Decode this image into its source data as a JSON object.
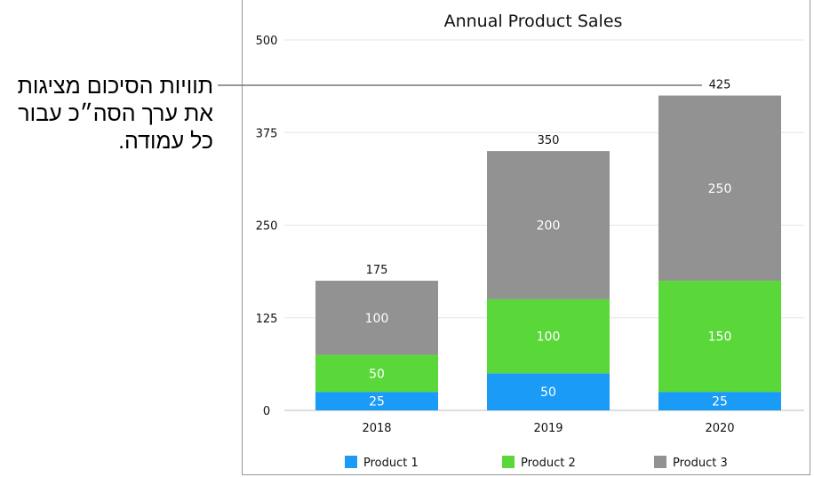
{
  "callout": {
    "text": "תוויות הסיכום מציגות את ערך הסה״כ עבור כל עמודה."
  },
  "chart_data": {
    "type": "bar",
    "stacked": true,
    "title": "Annual Product Sales",
    "categories": [
      "2018",
      "2019",
      "2020"
    ],
    "series": [
      {
        "name": "Product 1",
        "values": [
          25,
          50,
          25
        ],
        "color": "#1a9bf5"
      },
      {
        "name": "Product 2",
        "values": [
          50,
          100,
          150
        ],
        "color": "#5ad83a"
      },
      {
        "name": "Product 3",
        "values": [
          100,
          200,
          250
        ],
        "color": "#929292"
      }
    ],
    "totals": [
      175,
      350,
      425
    ],
    "yticks": [
      0,
      125,
      250,
      375,
      500
    ],
    "ylim": [
      0,
      500
    ],
    "grid": true,
    "legend": "bottom"
  }
}
